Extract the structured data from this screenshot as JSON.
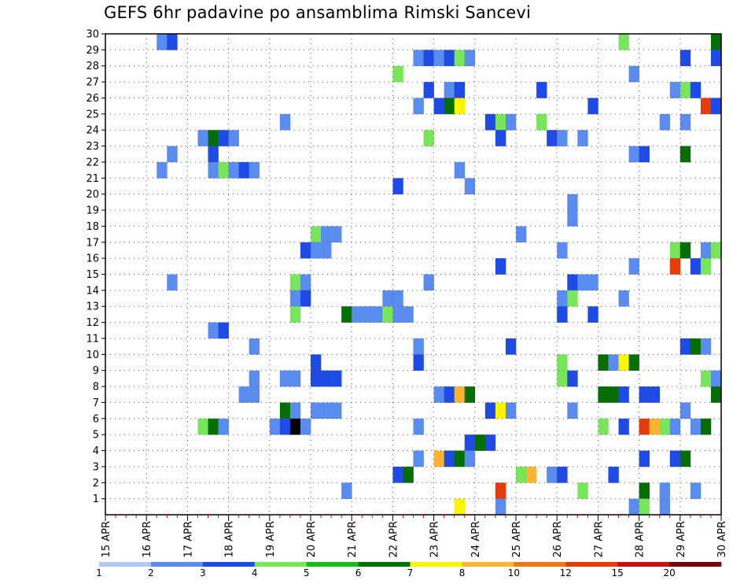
{
  "chart_data": {
    "type": "heatmap",
    "title": "GEFS 6hr padavine po ansamblima Rimski Sancevi",
    "x_labels": [
      "15 APR",
      "16 APR",
      "17 APR",
      "18 APR",
      "19 APR",
      "20 APR",
      "21 APR",
      "22 APR",
      "23 APR",
      "24 APR",
      "25 APR",
      "26 APR",
      "27 APR",
      "28 APR",
      "29 APR",
      "30 APR"
    ],
    "y_labels": [
      "1",
      "2",
      "3",
      "4",
      "5",
      "6",
      "7",
      "8",
      "9",
      "10",
      "11",
      "12",
      "13",
      "14",
      "15",
      "16",
      "17",
      "18",
      "19",
      "20",
      "21",
      "22",
      "23",
      "24",
      "25",
      "26",
      "27",
      "28",
      "29",
      "30"
    ],
    "x_range_steps_6h": [
      0,
      60
    ],
    "y_range_members": [
      0,
      30
    ],
    "grid": "dotted",
    "legend": {
      "position": "bottom",
      "labels": [
        "1",
        "2",
        "3",
        "4",
        "5",
        "6",
        "7",
        "8",
        "10",
        "12",
        "15",
        "20"
      ],
      "colors": [
        "#b4c8f5",
        "#5a8cf0",
        "#1e4be6",
        "#78e65a",
        "#14be14",
        "#056e05",
        "#fff500",
        "#fab432",
        "#f07814",
        "#e63c0a",
        "#c31414",
        "#780000"
      ]
    },
    "cells": [
      [
        5,
        30,
        1
      ],
      [
        6,
        30,
        2
      ],
      [
        50,
        30,
        3
      ],
      [
        59,
        30,
        5
      ],
      [
        30,
        29,
        1
      ],
      [
        31,
        29,
        2
      ],
      [
        32,
        29,
        1
      ],
      [
        33,
        29,
        2
      ],
      [
        34,
        29,
        3
      ],
      [
        35,
        29,
        1
      ],
      [
        56,
        29,
        2
      ],
      [
        59,
        29,
        2
      ],
      [
        28,
        28,
        3
      ],
      [
        51,
        28,
        1
      ],
      [
        31,
        27,
        2
      ],
      [
        33,
        27,
        1
      ],
      [
        34,
        27,
        2
      ],
      [
        42,
        27,
        2
      ],
      [
        55,
        27,
        1
      ],
      [
        56,
        27,
        3
      ],
      [
        57,
        27,
        2
      ],
      [
        30,
        26,
        1
      ],
      [
        32,
        26,
        2
      ],
      [
        33,
        26,
        5
      ],
      [
        34,
        26,
        6
      ],
      [
        47,
        26,
        2
      ],
      [
        58,
        26,
        9
      ],
      [
        59,
        26,
        2
      ],
      [
        17,
        25,
        1
      ],
      [
        37,
        25,
        2
      ],
      [
        38,
        25,
        3
      ],
      [
        39,
        25,
        1
      ],
      [
        42,
        25,
        3
      ],
      [
        54,
        25,
        1
      ],
      [
        56,
        25,
        1
      ],
      [
        9,
        24,
        1
      ],
      [
        10,
        24,
        5
      ],
      [
        11,
        24,
        2
      ],
      [
        12,
        24,
        1
      ],
      [
        31,
        24,
        3
      ],
      [
        38,
        24,
        2
      ],
      [
        43,
        24,
        2
      ],
      [
        44,
        24,
        1
      ],
      [
        46,
        24,
        1
      ],
      [
        6,
        23,
        1
      ],
      [
        10,
        23,
        2
      ],
      [
        51,
        23,
        1
      ],
      [
        52,
        23,
        2
      ],
      [
        56,
        23,
        5
      ],
      [
        5,
        22,
        1
      ],
      [
        10,
        22,
        1
      ],
      [
        11,
        22,
        3
      ],
      [
        12,
        22,
        1
      ],
      [
        13,
        22,
        2
      ],
      [
        14,
        22,
        1
      ],
      [
        34,
        22,
        1
      ],
      [
        28,
        21,
        2
      ],
      [
        35,
        21,
        1
      ],
      [
        45,
        20,
        1
      ],
      [
        45,
        19,
        1
      ],
      [
        20,
        18,
        3
      ],
      [
        21,
        18,
        1
      ],
      [
        22,
        18,
        1
      ],
      [
        40,
        18,
        1
      ],
      [
        19,
        17,
        2
      ],
      [
        20,
        17,
        1
      ],
      [
        21,
        17,
        1
      ],
      [
        44,
        17,
        1
      ],
      [
        55,
        17,
        3
      ],
      [
        56,
        17,
        5
      ],
      [
        58,
        17,
        1
      ],
      [
        59,
        17,
        3
      ],
      [
        38,
        16,
        2
      ],
      [
        51,
        16,
        1
      ],
      [
        55,
        16,
        9
      ],
      [
        57,
        16,
        2
      ],
      [
        58,
        16,
        3
      ],
      [
        6,
        15,
        1
      ],
      [
        18,
        15,
        3
      ],
      [
        19,
        15,
        1
      ],
      [
        31,
        15,
        1
      ],
      [
        45,
        15,
        2
      ],
      [
        46,
        15,
        1
      ],
      [
        47,
        15,
        1
      ],
      [
        18,
        14,
        1
      ],
      [
        19,
        14,
        2
      ],
      [
        27,
        14,
        1
      ],
      [
        28,
        14,
        1
      ],
      [
        44,
        14,
        1
      ],
      [
        45,
        14,
        3
      ],
      [
        50,
        14,
        1
      ],
      [
        18,
        13,
        3
      ],
      [
        23,
        13,
        5
      ],
      [
        24,
        13,
        1
      ],
      [
        25,
        13,
        1
      ],
      [
        26,
        13,
        1
      ],
      [
        27,
        13,
        3
      ],
      [
        28,
        13,
        1
      ],
      [
        29,
        13,
        1
      ],
      [
        44,
        13,
        2
      ],
      [
        47,
        13,
        2
      ],
      [
        10,
        12,
        1
      ],
      [
        11,
        12,
        2
      ],
      [
        14,
        11,
        1
      ],
      [
        30,
        11,
        1
      ],
      [
        39,
        11,
        2
      ],
      [
        56,
        11,
        2
      ],
      [
        57,
        11,
        5
      ],
      [
        58,
        11,
        1
      ],
      [
        30,
        10,
        2
      ],
      [
        20,
        10,
        2
      ],
      [
        44,
        10,
        3
      ],
      [
        48,
        10,
        5
      ],
      [
        49,
        10,
        1
      ],
      [
        50,
        10,
        6
      ],
      [
        51,
        10,
        5
      ],
      [
        14,
        9,
        1
      ],
      [
        17,
        9,
        1
      ],
      [
        18,
        9,
        1
      ],
      [
        20,
        9,
        2
      ],
      [
        21,
        9,
        2
      ],
      [
        22,
        9,
        2
      ],
      [
        44,
        9,
        3
      ],
      [
        45,
        9,
        2
      ],
      [
        58,
        9,
        3
      ],
      [
        59,
        9,
        1
      ],
      [
        13,
        8,
        1
      ],
      [
        14,
        8,
        1
      ],
      [
        32,
        8,
        1
      ],
      [
        33,
        8,
        2
      ],
      [
        34,
        8,
        7
      ],
      [
        35,
        8,
        5
      ],
      [
        48,
        8,
        5
      ],
      [
        49,
        8,
        5
      ],
      [
        50,
        8,
        2
      ],
      [
        52,
        8,
        2
      ],
      [
        53,
        8,
        2
      ],
      [
        59,
        8,
        5
      ],
      [
        17,
        7,
        5
      ],
      [
        18,
        7,
        1
      ],
      [
        20,
        7,
        1
      ],
      [
        21,
        7,
        1
      ],
      [
        22,
        7,
        1
      ],
      [
        37,
        7,
        2
      ],
      [
        38,
        7,
        6
      ],
      [
        39,
        7,
        1
      ],
      [
        45,
        7,
        1
      ],
      [
        56,
        7,
        1
      ],
      [
        9,
        6,
        3
      ],
      [
        10,
        6,
        5
      ],
      [
        11,
        6,
        1
      ],
      [
        16,
        6,
        1
      ],
      [
        17,
        6,
        2
      ],
      [
        18,
        6,
        12
      ],
      [
        19,
        6,
        1
      ],
      [
        30,
        6,
        1
      ],
      [
        48,
        6,
        3
      ],
      [
        50,
        6,
        2
      ],
      [
        52,
        6,
        9
      ],
      [
        53,
        6,
        7
      ],
      [
        54,
        6,
        3
      ],
      [
        55,
        6,
        1
      ],
      [
        57,
        6,
        1
      ],
      [
        58,
        6,
        5
      ],
      [
        35,
        5,
        2
      ],
      [
        36,
        5,
        5
      ],
      [
        37,
        5,
        2
      ],
      [
        30,
        4,
        1
      ],
      [
        32,
        4,
        7
      ],
      [
        33,
        4,
        2
      ],
      [
        34,
        4,
        5
      ],
      [
        35,
        4,
        1
      ],
      [
        52,
        4,
        2
      ],
      [
        55,
        4,
        2
      ],
      [
        56,
        4,
        5
      ],
      [
        28,
        3,
        2
      ],
      [
        29,
        3,
        5
      ],
      [
        40,
        3,
        3
      ],
      [
        41,
        3,
        7
      ],
      [
        43,
        3,
        1
      ],
      [
        44,
        3,
        2
      ],
      [
        49,
        3,
        2
      ],
      [
        23,
        2,
        1
      ],
      [
        38,
        2,
        9
      ],
      [
        46,
        2,
        3
      ],
      [
        52,
        2,
        5
      ],
      [
        54,
        2,
        1
      ],
      [
        57,
        2,
        1
      ],
      [
        34,
        1,
        6
      ],
      [
        38,
        1,
        1
      ],
      [
        51,
        1,
        1
      ],
      [
        52,
        1,
        3
      ],
      [
        54,
        1,
        1
      ]
    ]
  }
}
